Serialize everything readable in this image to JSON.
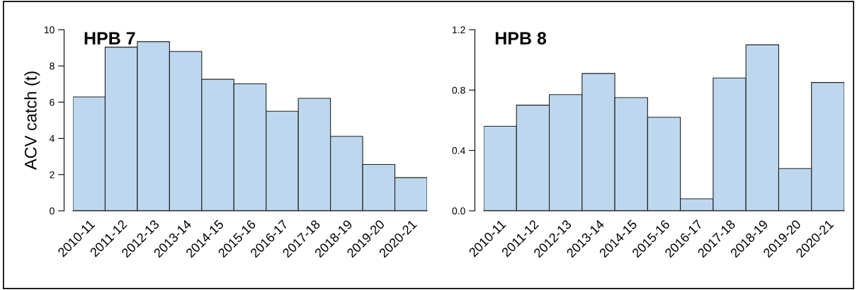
{
  "chart_data": [
    {
      "type": "bar",
      "title": "HPB 7",
      "ylabel": "ACV catch (t)",
      "categories": [
        "2010-11",
        "2011-12",
        "2012-13",
        "2013-14",
        "2014-15",
        "2015-16",
        "2016-17",
        "2017-18",
        "2018-19",
        "2019-20",
        "2020-21"
      ],
      "values": [
        6.29,
        9.04,
        9.34,
        8.8,
        7.26,
        7.01,
        5.5,
        6.21,
        4.11,
        2.56,
        1.83
      ],
      "color": "#bdd7ee",
      "ylim": [
        0,
        10
      ],
      "yticks": [
        0,
        2,
        4,
        6,
        8,
        10
      ],
      "grid": false
    },
    {
      "type": "bar",
      "title": "HPB 8",
      "categories": [
        "2010-11",
        "2011-12",
        "2012-13",
        "2013-14",
        "2014-15",
        "2015-16",
        "2016-17",
        "2017-18",
        "2018-19",
        "2019-20",
        "2020-21"
      ],
      "values": [
        0.56,
        0.7,
        0.77,
        0.91,
        0.75,
        0.62,
        0.08,
        0.88,
        1.1,
        0.28,
        0.85
      ],
      "color": "#bdd7ee",
      "ylim": [
        0,
        1.2
      ],
      "yticks": [
        {
          "value": 0,
          "label": "0.0"
        },
        {
          "value": 0.4,
          "label": "0.4"
        },
        {
          "value": 0.8,
          "label": "0.8"
        },
        {
          "value": 1.2,
          "label": "1.2"
        }
      ],
      "grid": false
    }
  ]
}
